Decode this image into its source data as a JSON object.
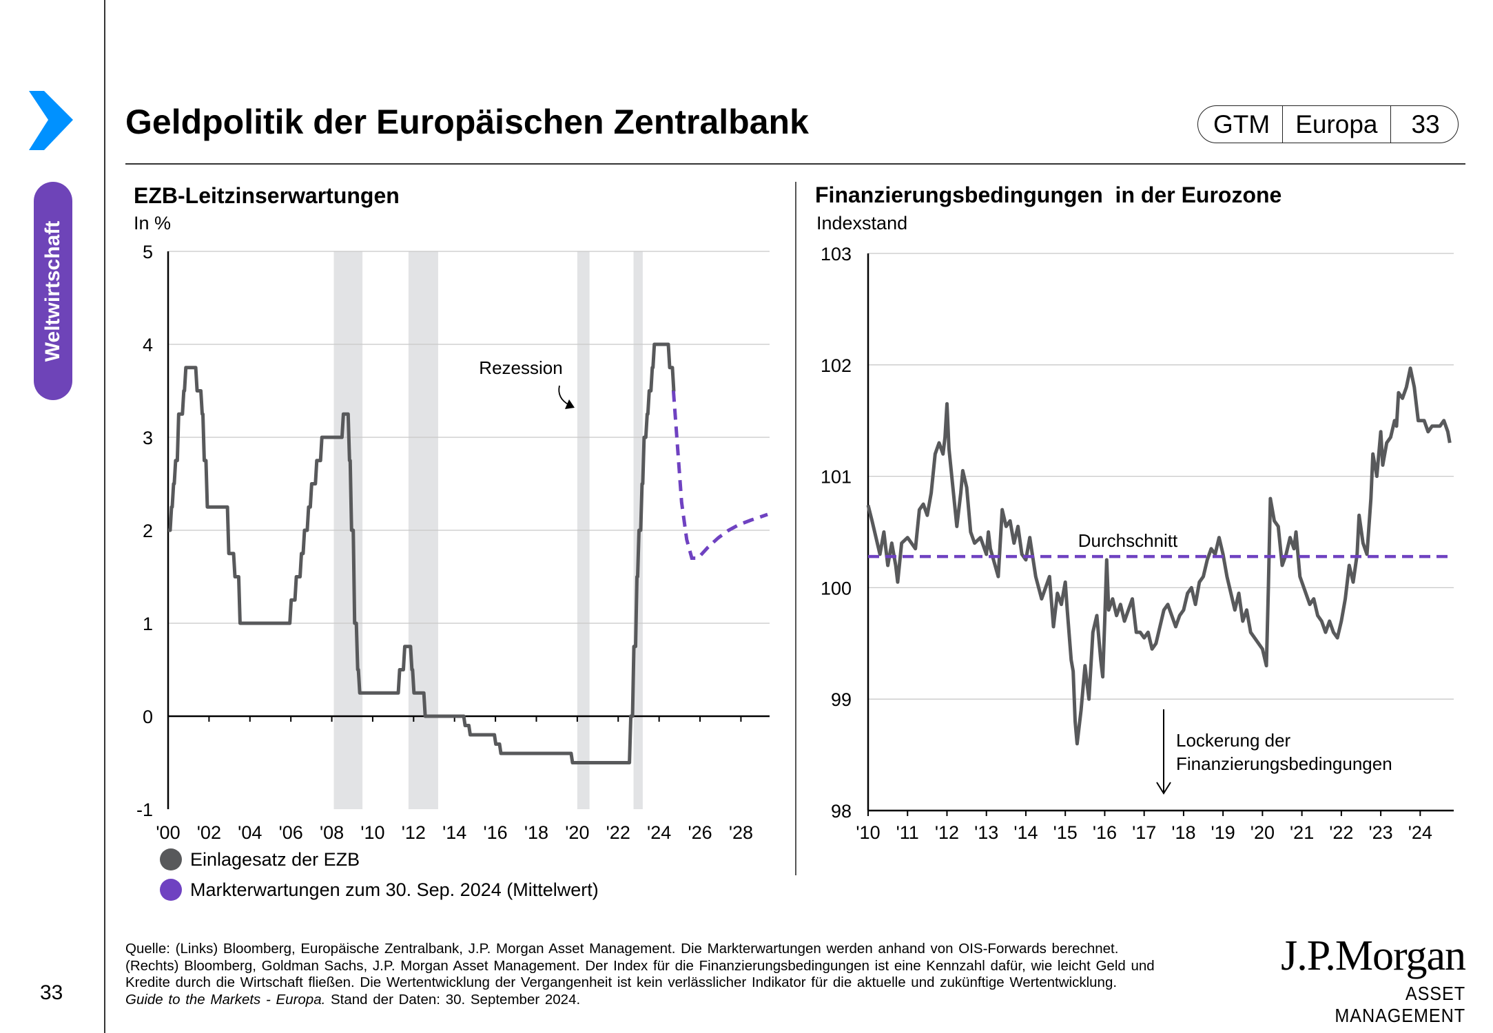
{
  "sidebar": {
    "section": "Weltwirtschaft",
    "page_number": "33",
    "accent": "#0091ff",
    "pill_color": "#6e44b8"
  },
  "header": {
    "title": "Geldpolitik der Europäischen Zentralbank",
    "badge": [
      "GTM",
      "Europa",
      "33"
    ]
  },
  "chart_data": [
    {
      "type": "line",
      "title": "EZB-Leitzinserwartungen",
      "ylabel": "In %",
      "xlabel": "",
      "ylim": [
        -1,
        5
      ],
      "yticks": [
        "5",
        "4",
        "3",
        "2",
        "1",
        "0",
        "-1"
      ],
      "xticks": [
        "'00",
        "'02",
        "'04",
        "'06",
        "'08",
        "'10",
        "'12",
        "'14",
        "'16",
        "'18",
        "'20",
        "'22",
        "'24",
        "'26",
        "'28"
      ],
      "xlim": [
        2000,
        2029.4
      ],
      "grid": true,
      "annotation": "Rezession",
      "recessions": [
        [
          2008.1,
          2009.5
        ],
        [
          2011.75,
          2013.2
        ],
        [
          2020.0,
          2020.6
        ],
        [
          2022.75,
          2023.2
        ]
      ],
      "legend_position": "bottom-left",
      "series": [
        {
          "name": "Einlagesatz der EZB",
          "color": "#58595b",
          "style": "solid-step",
          "points": [
            [
              2000.0,
              2.0
            ],
            [
              2000.1,
              2.25
            ],
            [
              2000.2,
              2.5
            ],
            [
              2000.3,
              2.75
            ],
            [
              2000.45,
              3.25
            ],
            [
              2000.7,
              3.5
            ],
            [
              2000.8,
              3.75
            ],
            [
              2001.35,
              3.5
            ],
            [
              2001.6,
              3.25
            ],
            [
              2001.7,
              2.75
            ],
            [
              2001.85,
              2.25
            ],
            [
              2002.9,
              1.75
            ],
            [
              2003.2,
              1.5
            ],
            [
              2003.45,
              1.0
            ],
            [
              2005.95,
              1.25
            ],
            [
              2006.2,
              1.5
            ],
            [
              2006.45,
              1.75
            ],
            [
              2006.6,
              2.0
            ],
            [
              2006.8,
              2.25
            ],
            [
              2006.95,
              2.5
            ],
            [
              2007.2,
              2.75
            ],
            [
              2007.45,
              3.0
            ],
            [
              2008.5,
              3.25
            ],
            [
              2008.8,
              2.75
            ],
            [
              2008.9,
              2.0
            ],
            [
              2009.05,
              1.0
            ],
            [
              2009.2,
              0.5
            ],
            [
              2009.3,
              0.25
            ],
            [
              2011.25,
              0.5
            ],
            [
              2011.5,
              0.75
            ],
            [
              2011.85,
              0.5
            ],
            [
              2011.95,
              0.25
            ],
            [
              2012.5,
              0.0
            ],
            [
              2014.45,
              -0.1
            ],
            [
              2014.7,
              -0.2
            ],
            [
              2015.95,
              -0.3
            ],
            [
              2016.2,
              -0.4
            ],
            [
              2019.7,
              -0.5
            ],
            [
              2022.55,
              0.0
            ],
            [
              2022.7,
              0.75
            ],
            [
              2022.85,
              1.5
            ],
            [
              2022.95,
              2.0
            ],
            [
              2023.1,
              2.5
            ],
            [
              2023.2,
              3.0
            ],
            [
              2023.35,
              3.25
            ],
            [
              2023.45,
              3.5
            ],
            [
              2023.6,
              3.75
            ],
            [
              2023.7,
              4.0
            ],
            [
              2024.45,
              3.75
            ],
            [
              2024.65,
              3.5
            ],
            [
              2024.7,
              3.5
            ]
          ]
        },
        {
          "name": "Markterwartungen zum 30. Sep. 2024 (Mittelwert)",
          "color": "#6f42c1",
          "style": "dashed",
          "points": [
            [
              2024.7,
              3.5
            ],
            [
              2024.9,
              2.9
            ],
            [
              2025.1,
              2.3
            ],
            [
              2025.35,
              1.9
            ],
            [
              2025.6,
              1.7
            ],
            [
              2025.9,
              1.7
            ],
            [
              2026.4,
              1.82
            ],
            [
              2026.9,
              1.92
            ],
            [
              2027.4,
              2.0
            ],
            [
              2027.9,
              2.06
            ],
            [
              2028.5,
              2.11
            ],
            [
              2029.3,
              2.17
            ]
          ]
        }
      ]
    },
    {
      "type": "line",
      "title": "Finanzierungsbedingungen  in der Eurozone",
      "ylabel": "Indexstand",
      "xlabel": "",
      "ylim": [
        98,
        103
      ],
      "yticks": [
        "103",
        "102",
        "101",
        "100",
        "99",
        "98"
      ],
      "xticks": [
        "'10",
        "'11",
        "'12",
        "'13",
        "'14",
        "'15",
        "'16",
        "'17",
        "'18",
        "'19",
        "'20",
        "'21",
        "'22",
        "'23",
        "'24"
      ],
      "xlim": [
        2010,
        2024.85
      ],
      "grid": true,
      "average": {
        "label": "Durchschnitt",
        "value": 100.28,
        "color": "#6f42c1"
      },
      "annotation": "Lockerung der Finanzierungsbedingungen",
      "series": [
        {
          "color": "#58595b",
          "points": [
            [
              2010.0,
              100.74
            ],
            [
              2010.1,
              100.6
            ],
            [
              2010.2,
              100.45
            ],
            [
              2010.3,
              100.3
            ],
            [
              2010.4,
              100.5
            ],
            [
              2010.5,
              100.2
            ],
            [
              2010.6,
              100.4
            ],
            [
              2010.7,
              100.2
            ],
            [
              2010.75,
              100.05
            ],
            [
              2010.85,
              100.4
            ],
            [
              2011.0,
              100.45
            ],
            [
              2011.2,
              100.35
            ],
            [
              2011.3,
              100.7
            ],
            [
              2011.4,
              100.75
            ],
            [
              2011.5,
              100.65
            ],
            [
              2011.6,
              100.85
            ],
            [
              2011.7,
              101.2
            ],
            [
              2011.8,
              101.3
            ],
            [
              2011.9,
              101.2
            ],
            [
              2011.95,
              101.35
            ],
            [
              2012.0,
              101.65
            ],
            [
              2012.05,
              101.25
            ],
            [
              2012.15,
              100.9
            ],
            [
              2012.25,
              100.55
            ],
            [
              2012.35,
              100.85
            ],
            [
              2012.4,
              101.05
            ],
            [
              2012.5,
              100.9
            ],
            [
              2012.6,
              100.5
            ],
            [
              2012.7,
              100.4
            ],
            [
              2012.85,
              100.45
            ],
            [
              2013.0,
              100.3
            ],
            [
              2013.05,
              100.5
            ],
            [
              2013.1,
              100.35
            ],
            [
              2013.3,
              100.1
            ],
            [
              2013.4,
              100.7
            ],
            [
              2013.5,
              100.55
            ],
            [
              2013.6,
              100.6
            ],
            [
              2013.7,
              100.4
            ],
            [
              2013.8,
              100.55
            ],
            [
              2013.9,
              100.3
            ],
            [
              2014.0,
              100.25
            ],
            [
              2014.1,
              100.45
            ],
            [
              2014.25,
              100.1
            ],
            [
              2014.4,
              99.9
            ],
            [
              2014.5,
              100.0
            ],
            [
              2014.6,
              100.1
            ],
            [
              2014.7,
              99.65
            ],
            [
              2014.8,
              99.95
            ],
            [
              2014.9,
              99.85
            ],
            [
              2015.0,
              100.05
            ],
            [
              2015.05,
              99.8
            ],
            [
              2015.15,
              99.35
            ],
            [
              2015.2,
              99.25
            ],
            [
              2015.25,
              98.8
            ],
            [
              2015.3,
              98.6
            ],
            [
              2015.4,
              98.9
            ],
            [
              2015.45,
              99.1
            ],
            [
              2015.5,
              99.3
            ],
            [
              2015.6,
              99.0
            ],
            [
              2015.7,
              99.6
            ],
            [
              2015.8,
              99.75
            ],
            [
              2015.9,
              99.35
            ],
            [
              2015.95,
              99.2
            ],
            [
              2016.0,
              99.7
            ],
            [
              2016.05,
              100.25
            ],
            [
              2016.1,
              99.8
            ],
            [
              2016.2,
              99.9
            ],
            [
              2016.3,
              99.75
            ],
            [
              2016.4,
              99.85
            ],
            [
              2016.5,
              99.7
            ],
            [
              2016.6,
              99.8
            ],
            [
              2016.7,
              99.9
            ],
            [
              2016.8,
              99.6
            ],
            [
              2016.9,
              99.6
            ],
            [
              2017.0,
              99.55
            ],
            [
              2017.1,
              99.6
            ],
            [
              2017.2,
              99.45
            ],
            [
              2017.3,
              99.5
            ],
            [
              2017.5,
              99.8
            ],
            [
              2017.6,
              99.85
            ],
            [
              2017.7,
              99.75
            ],
            [
              2017.8,
              99.65
            ],
            [
              2017.9,
              99.75
            ],
            [
              2018.0,
              99.8
            ],
            [
              2018.1,
              99.95
            ],
            [
              2018.2,
              100.0
            ],
            [
              2018.3,
              99.85
            ],
            [
              2018.4,
              100.05
            ],
            [
              2018.5,
              100.1
            ],
            [
              2018.6,
              100.25
            ],
            [
              2018.7,
              100.35
            ],
            [
              2018.8,
              100.3
            ],
            [
              2018.9,
              100.45
            ],
            [
              2019.0,
              100.3
            ],
            [
              2019.1,
              100.1
            ],
            [
              2019.2,
              99.95
            ],
            [
              2019.3,
              99.8
            ],
            [
              2019.4,
              99.95
            ],
            [
              2019.5,
              99.7
            ],
            [
              2019.6,
              99.8
            ],
            [
              2019.7,
              99.6
            ],
            [
              2019.8,
              99.55
            ],
            [
              2019.9,
              99.5
            ],
            [
              2020.0,
              99.45
            ],
            [
              2020.1,
              99.3
            ],
            [
              2020.15,
              100.0
            ],
            [
              2020.2,
              100.8
            ],
            [
              2020.3,
              100.6
            ],
            [
              2020.4,
              100.55
            ],
            [
              2020.5,
              100.2
            ],
            [
              2020.6,
              100.3
            ],
            [
              2020.7,
              100.45
            ],
            [
              2020.8,
              100.35
            ],
            [
              2020.85,
              100.5
            ],
            [
              2020.95,
              100.1
            ],
            [
              2021.0,
              100.05
            ],
            [
              2021.1,
              99.95
            ],
            [
              2021.2,
              99.85
            ],
            [
              2021.3,
              99.9
            ],
            [
              2021.4,
              99.75
            ],
            [
              2021.5,
              99.7
            ],
            [
              2021.6,
              99.6
            ],
            [
              2021.7,
              99.7
            ],
            [
              2021.8,
              99.6
            ],
            [
              2021.9,
              99.55
            ],
            [
              2022.0,
              99.7
            ],
            [
              2022.1,
              99.9
            ],
            [
              2022.2,
              100.2
            ],
            [
              2022.3,
              100.05
            ],
            [
              2022.4,
              100.3
            ],
            [
              2022.45,
              100.65
            ],
            [
              2022.55,
              100.4
            ],
            [
              2022.65,
              100.3
            ],
            [
              2022.75,
              100.8
            ],
            [
              2022.8,
              101.2
            ],
            [
              2022.9,
              101.0
            ],
            [
              2023.0,
              101.4
            ],
            [
              2023.05,
              101.1
            ],
            [
              2023.15,
              101.3
            ],
            [
              2023.25,
              101.35
            ],
            [
              2023.35,
              101.5
            ],
            [
              2023.4,
              101.45
            ],
            [
              2023.45,
              101.75
            ],
            [
              2023.55,
              101.7
            ],
            [
              2023.65,
              101.8
            ],
            [
              2023.75,
              101.97
            ],
            [
              2023.85,
              101.8
            ],
            [
              2023.95,
              101.5
            ],
            [
              2024.1,
              101.5
            ],
            [
              2024.2,
              101.4
            ],
            [
              2024.3,
              101.45
            ],
            [
              2024.5,
              101.45
            ],
            [
              2024.6,
              101.5
            ],
            [
              2024.7,
              101.4
            ],
            [
              2024.75,
              101.3
            ]
          ]
        }
      ]
    }
  ],
  "footer": {
    "lines": [
      "Quelle: (Links) Bloomberg, Europäische Zentralbank, J.P. Morgan Asset Management. Die Markterwartungen werden anhand von OIS-Forwards berechnet.",
      "(Rechts) Bloomberg, Goldman Sachs, J.P. Morgan Asset Management. Der Index für die Finanzierungsbedingungen ist eine Kennzahl dafür, wie leicht Geld und",
      "Kredite durch die Wirtschaft fließen. Die Wertentwicklung der Vergangenheit ist kein verlässlicher Indikator für die aktuelle und zukünftige Wertentwicklung."
    ],
    "last_italic": "Guide to the Markets - Europa.",
    "last_plain": " Stand der Daten: 30. September 2024."
  },
  "logo": {
    "main": "J.P.Morgan",
    "sub": "ASSET MANAGEMENT"
  }
}
